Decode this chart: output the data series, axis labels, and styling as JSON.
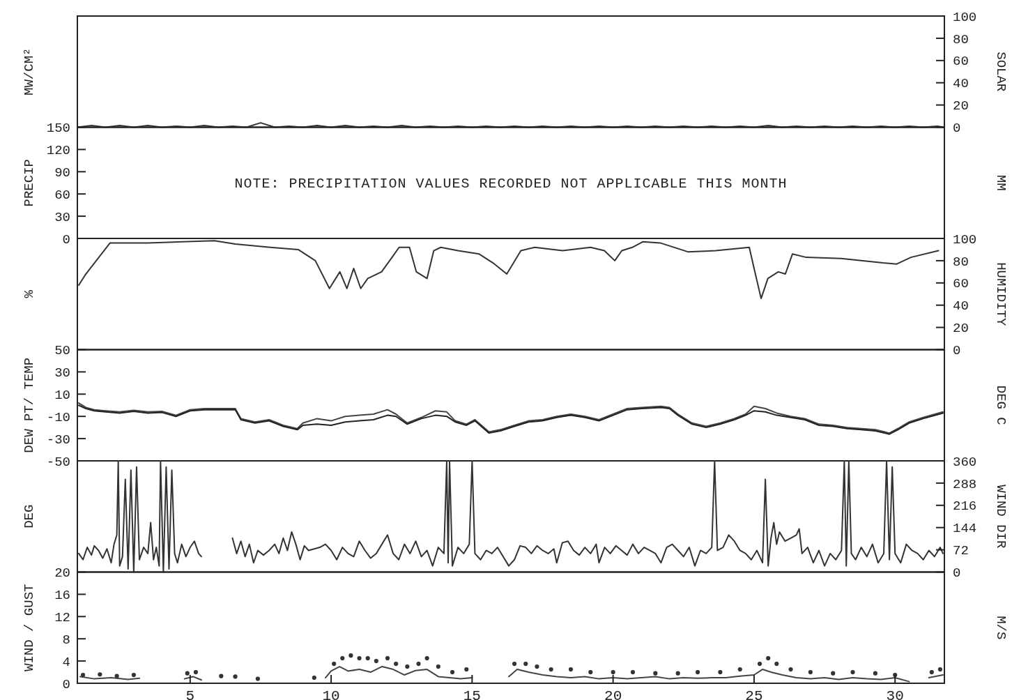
{
  "chart_data": [
    {
      "type": "line",
      "ylabel": "MW/CM²",
      "y2label": "SOLAR",
      "xlim": [
        1,
        31.75
      ],
      "y2lim": [
        0,
        100
      ],
      "y2ticks": [
        0,
        20,
        40,
        60,
        80,
        100
      ],
      "tick_labels": "y",
      "series": [
        {
          "color": "#333333",
          "axis": "y2",
          "x": [
            1,
            1.5,
            2,
            2.5,
            3,
            3.5,
            4,
            4.5,
            5,
            5.5,
            6,
            6.5,
            7,
            7.5,
            8,
            8.5,
            9,
            9.5,
            10,
            10.5,
            11,
            11.5,
            12,
            12.5,
            13,
            13.5,
            14,
            14.5,
            15,
            15.5,
            16,
            16.5,
            17,
            17.5,
            18,
            18.5,
            19,
            19.5,
            20,
            20.5,
            21,
            21.5,
            22,
            22.5,
            23,
            23.5,
            24,
            24.5,
            25,
            25.5,
            26,
            26.5,
            27,
            27.5,
            28,
            28.5,
            29,
            29.5,
            30,
            30.5,
            31,
            31.5,
            31.75
          ],
          "values": [
            0,
            1.5,
            0,
            1.5,
            0,
            1.5,
            0,
            1,
            0,
            1.5,
            0,
            1,
            0,
            4,
            0,
            1,
            0,
            1.5,
            0,
            1.5,
            0,
            1,
            0,
            1.5,
            0,
            1,
            0,
            1,
            0,
            1,
            0,
            1,
            0,
            1,
            0,
            1,
            0,
            1,
            0,
            1,
            0,
            1,
            0,
            1,
            0,
            1,
            0,
            1,
            0,
            1.5,
            0,
            1,
            0,
            1,
            0,
            1,
            0,
            1,
            0,
            1,
            0,
            1,
            0
          ]
        }
      ]
    },
    {
      "type": "line",
      "ylabel": "PRECIP",
      "y2label": "MM",
      "xlim": [
        1,
        31.75
      ],
      "ylim": [
        0,
        150
      ],
      "yticks": [
        0,
        30,
        60,
        90,
        120,
        150
      ],
      "tick_labels": "y",
      "annotations": [
        "NOTE: PRECIPITATION VALUES RECORDED NOT APPLICABLE THIS MONTH"
      ]
    },
    {
      "type": "line",
      "ylabel": "%",
      "y2label": "HUMIDITY",
      "xlim": [
        1,
        31.75
      ],
      "y2lim": [
        0,
        100
      ],
      "y2ticks": [
        0,
        20,
        40,
        60,
        80,
        100
      ],
      "tick_labels": "y",
      "series": [
        {
          "color": "#333333",
          "axis": "y2",
          "x": [
            1.05,
            1.3,
            1.67,
            2.16,
            3.5,
            5.86,
            6.6,
            7.84,
            8.83,
            9.44,
            9.94,
            10.31,
            10.56,
            10.8,
            11.05,
            11.3,
            11.79,
            12.16,
            12.41,
            12.78,
            13.02,
            13.4,
            13.64,
            13.89,
            14.5,
            15.25,
            15.74,
            16.23,
            16.73,
            17.22,
            18.21,
            19.2,
            19.69,
            20.06,
            20.31,
            20.68,
            21.05,
            21.67,
            22.65,
            23.64,
            24.83,
            25.0,
            25.25,
            25.49,
            25.86,
            26.11,
            26.36,
            26.85,
            28.09,
            29.57,
            30.06,
            30.56,
            31.54
          ],
          "values": [
            58,
            68,
            80,
            96,
            96,
            98,
            95,
            92,
            90,
            80,
            55,
            70,
            55,
            73,
            55,
            64,
            70,
            83,
            92,
            92,
            70,
            64,
            89,
            92,
            89,
            86,
            78,
            68,
            89,
            92,
            89,
            92,
            89,
            80,
            89,
            92,
            97,
            96,
            88,
            89,
            92,
            73,
            46,
            64,
            70,
            68,
            86,
            83,
            82,
            78,
            77,
            83,
            89
          ]
        }
      ]
    },
    {
      "type": "line",
      "ylabel": "DEW PT/ TEMP",
      "y2label": "DEG C",
      "xlim": [
        1,
        31.75
      ],
      "ylim": [
        -50,
        50
      ],
      "yticks": [
        -50,
        -30,
        -10,
        10,
        30,
        50
      ],
      "tick_labels": "y",
      "series": [
        {
          "color": "#444444",
          "x": [
            1.05,
            1.3,
            1.6,
            2.0,
            2.5,
            3.0,
            3.5,
            4.0,
            4.5,
            5.0,
            5.5,
            6.0,
            6.6,
            6.8,
            7.3,
            7.8,
            8.3,
            8.8,
            9.0,
            9.5,
            10.0,
            10.5,
            11.0,
            11.5,
            12.0,
            12.3,
            12.7,
            13.2,
            13.7,
            14.1,
            14.4,
            14.8,
            15.1,
            15.6,
            16.0,
            16.5,
            17.0,
            17.5,
            18.0,
            18.5,
            19.0,
            19.5,
            20.0,
            20.5,
            21.0,
            21.7,
            22.0,
            22.3,
            22.8,
            23.3,
            23.8,
            24.3,
            24.7,
            25.0,
            25.4,
            25.8,
            26.3,
            26.8,
            27.3,
            27.8,
            28.3,
            28.8,
            29.3,
            29.8,
            30.1,
            30.5,
            31.0,
            31.7
          ],
          "values": [
            2,
            -2,
            -4,
            -5,
            -6,
            -4.5,
            -6,
            -5.5,
            -9,
            -4,
            -3,
            -3,
            -3,
            -12,
            -15,
            -13,
            -18,
            -21,
            -16,
            -12,
            -14,
            -10,
            -9,
            -8,
            -4,
            -8,
            -16,
            -11,
            -5,
            -6,
            -14,
            -17,
            -13,
            -24,
            -22,
            -18,
            -14,
            -13,
            -10,
            -8,
            -10,
            -13,
            -8,
            -3,
            -2,
            -1,
            -2,
            -8,
            -16,
            -19,
            -16,
            -12,
            -8,
            -1,
            -3,
            -7,
            -10,
            -12,
            -17,
            -18,
            -20,
            -21,
            -22,
            -25,
            -21,
            -15,
            -11,
            -6
          ]
        },
        {
          "color": "#222222",
          "x": [
            1.05,
            1.3,
            1.6,
            2.0,
            2.5,
            3.0,
            3.5,
            4.0,
            4.5,
            5.0,
            5.5,
            6.0,
            6.6,
            6.8,
            7.3,
            7.8,
            8.3,
            8.8,
            9.0,
            9.5,
            10.0,
            10.5,
            11.0,
            11.5,
            12.0,
            12.3,
            12.7,
            13.2,
            13.7,
            14.1,
            14.4,
            14.8,
            15.1,
            15.6,
            16.0,
            16.5,
            17.0,
            17.5,
            18.0,
            18.5,
            19.0,
            19.5,
            20.0,
            20.5,
            21.0,
            21.7,
            22.0,
            22.3,
            22.8,
            23.3,
            23.8,
            24.3,
            24.7,
            25.0,
            25.4,
            25.8,
            26.3,
            26.8,
            27.3,
            27.8,
            28.3,
            28.8,
            29.3,
            29.8,
            30.1,
            30.5,
            31.0,
            31.7
          ],
          "values": [
            0,
            -3,
            -5,
            -6,
            -7,
            -5.5,
            -7,
            -6.5,
            -10,
            -5,
            -4,
            -4,
            -4,
            -13,
            -16,
            -14,
            -19,
            -22,
            -18,
            -17,
            -18,
            -15,
            -14,
            -13,
            -9,
            -10,
            -17,
            -12,
            -9,
            -10,
            -15,
            -18,
            -14,
            -25,
            -23,
            -19,
            -15,
            -14,
            -11,
            -9,
            -11,
            -14,
            -9,
            -4,
            -3,
            -2,
            -3,
            -9,
            -17,
            -20,
            -17,
            -13,
            -9,
            -5,
            -6,
            -9,
            -11,
            -13,
            -18,
            -19,
            -21,
            -22,
            -23,
            -26,
            -22,
            -16,
            -12,
            -7
          ]
        }
      ]
    },
    {
      "type": "line",
      "ylabel": "DEG",
      "y2label": "WIND DIR",
      "xlim": [
        1,
        31.75
      ],
      "y2lim": [
        0,
        360
      ],
      "y2ticks": [
        0,
        72,
        144,
        216,
        288,
        360
      ],
      "tick_labels": "y",
      "series": [
        {
          "color": "#333333",
          "axis": "y2",
          "x": [
            1.05,
            1.2,
            1.35,
            1.5,
            1.6,
            1.75,
            1.9,
            2.05,
            2.2,
            2.3,
            2.4,
            2.45,
            2.5,
            2.6,
            2.7,
            2.8,
            2.9,
            3.0,
            3.1,
            3.2,
            3.35,
            3.5,
            3.6,
            3.7,
            3.8,
            3.9,
            3.95,
            4.05,
            4.15,
            4.25,
            4.35,
            4.45,
            4.55,
            4.7,
            4.85,
            5.0,
            5.15,
            5.3,
            5.4,
            5.9,
            6.5,
            6.65,
            6.8,
            6.95,
            7.1,
            7.25,
            7.4,
            7.6,
            7.8,
            8.0,
            8.15,
            8.3,
            8.45,
            8.6,
            8.75,
            8.9,
            9.05,
            9.2,
            9.4,
            9.6,
            9.8,
            10.0,
            10.2,
            10.4,
            10.6,
            10.8,
            11.0,
            11.2,
            11.4,
            11.6,
            11.8,
            12.0,
            12.2,
            12.4,
            12.6,
            12.8,
            13.0,
            13.2,
            13.4,
            13.6,
            13.8,
            14.0,
            14.1,
            14.15,
            14.2,
            14.3,
            14.5,
            14.7,
            14.9,
            15.0,
            15.1,
            15.3,
            15.5,
            15.7,
            15.9,
            16.1,
            16.3,
            16.5,
            16.7,
            16.9,
            17.1,
            17.3,
            17.5,
            17.7,
            17.9,
            18.0,
            18.2,
            18.4,
            18.6,
            18.8,
            19.0,
            19.2,
            19.4,
            19.5,
            19.7,
            19.9,
            20.1,
            20.3,
            20.5,
            20.7,
            20.9,
            21.1,
            21.3,
            21.5,
            21.7,
            21.9,
            22.1,
            22.3,
            22.5,
            22.7,
            22.9,
            23.1,
            23.3,
            23.5,
            23.6,
            23.7,
            23.9,
            24.1,
            24.3,
            24.5,
            24.7,
            24.9,
            25.1,
            25.3,
            25.4,
            25.5,
            25.6,
            25.7,
            25.8,
            25.9,
            26.1,
            26.3,
            26.5,
            26.6,
            26.7,
            26.9,
            27.1,
            27.3,
            27.5,
            27.7,
            27.9,
            28.1,
            28.2,
            28.27,
            28.36,
            28.45,
            28.6,
            28.8,
            29.0,
            29.2,
            29.4,
            29.6,
            29.7,
            29.8,
            29.9,
            30.0,
            30.2,
            30.4,
            30.6,
            30.8,
            31.0,
            31.2,
            31.4,
            31.6,
            31.7
          ],
          "values": [
            60,
            40,
            80,
            55,
            85,
            70,
            45,
            75,
            30,
            90,
            120,
            360,
            20,
            50,
            300,
            10,
            330,
            0,
            340,
            40,
            80,
            60,
            160,
            40,
            80,
            20,
            360,
            0,
            340,
            10,
            330,
            60,
            30,
            90,
            50,
            80,
            100,
            60,
            50,
            null,
            110,
            60,
            100,
            50,
            90,
            30,
            70,
            55,
            70,
            90,
            60,
            110,
            70,
            130,
            90,
            40,
            85,
            70,
            75,
            80,
            90,
            70,
            40,
            80,
            60,
            50,
            100,
            70,
            45,
            60,
            90,
            120,
            60,
            40,
            90,
            60,
            100,
            50,
            70,
            20,
            80,
            60,
            360,
            30,
            360,
            20,
            80,
            60,
            90,
            360,
            60,
            40,
            70,
            60,
            80,
            50,
            20,
            40,
            85,
            80,
            60,
            85,
            70,
            60,
            75,
            30,
            95,
            100,
            70,
            55,
            80,
            60,
            90,
            30,
            80,
            60,
            85,
            70,
            55,
            90,
            60,
            80,
            70,
            60,
            30,
            80,
            90,
            70,
            50,
            80,
            20,
            70,
            60,
            80,
            360,
            70,
            80,
            120,
            100,
            70,
            60,
            40,
            70,
            30,
            300,
            20,
            110,
            160,
            90,
            130,
            100,
            110,
            120,
            140,
            60,
            80,
            30,
            70,
            20,
            60,
            40,
            70,
            360,
            20,
            360,
            60,
            40,
            80,
            50,
            90,
            30,
            60,
            360,
            40,
            340,
            60,
            30,
            90,
            70,
            60,
            40,
            70,
            50,
            80,
            60
          ]
        }
      ]
    },
    {
      "type": "line",
      "ylabel": "WIND / GUST",
      "y2label": "M/S",
      "xlim": [
        1,
        31.75
      ],
      "xticks": [
        5,
        10,
        15,
        20,
        25,
        30
      ],
      "ylim": [
        0,
        20
      ],
      "yticks": [
        0,
        4,
        8,
        12,
        16,
        20
      ],
      "series": [
        {
          "color": "#444444",
          "x": [
            1.1,
            1.6,
            2.2,
            2.8,
            3.2,
            3.5,
            4.8,
            5.1,
            5.4,
            5.6,
            9.8,
            10.0,
            10.3,
            10.6,
            11.0,
            11.4,
            11.8,
            12.2,
            12.6,
            13.0,
            13.4,
            13.8,
            14.2,
            14.6,
            15.0,
            15.5,
            16.3,
            16.6,
            17.0,
            17.5,
            18.0,
            18.5,
            19.0,
            19.5,
            20.0,
            20.5,
            21.0,
            21.5,
            22.0,
            22.5,
            23.0,
            23.5,
            24.0,
            24.5,
            25.0,
            25.3,
            25.6,
            26.0,
            26.5,
            27.0,
            27.5,
            28.0,
            28.5,
            29.0,
            29.5,
            30.0,
            30.5,
            30.8,
            31.2,
            31.7
          ],
          "values": [
            1.2,
            0.8,
            1,
            0.7,
            0.9,
            null,
            0.8,
            1.2,
            0.6,
            null,
            1,
            2.2,
            3,
            2.2,
            2.5,
            2,
            3,
            2.5,
            1.5,
            2.3,
            2.5,
            1.2,
            1,
            0.8,
            1,
            null,
            1.2,
            2.5,
            2,
            1.5,
            1.2,
            1,
            1.2,
            0.8,
            1,
            0.8,
            1,
            1.2,
            0.8,
            1,
            0.9,
            1,
            1,
            1.3,
            1.5,
            2.5,
            2,
            1.5,
            1,
            0.8,
            1,
            0.7,
            1,
            0.8,
            0.7,
            1,
            0.3,
            null,
            1,
            1.5
          ]
        },
        {
          "type": "scatter",
          "marker": "circle",
          "color": "#333333",
          "x": [
            1.2,
            1.8,
            2.4,
            3,
            4.9,
            5.2,
            6.1,
            6.6,
            7.4,
            9.4,
            10.1,
            10.4,
            10.7,
            11,
            11.3,
            11.6,
            12,
            12.3,
            12.7,
            13.1,
            13.4,
            13.8,
            14.3,
            14.8,
            16.5,
            16.9,
            17.3,
            17.8,
            18.5,
            19.2,
            20,
            20.7,
            21.5,
            22.3,
            23,
            23.8,
            24.5,
            25.2,
            25.5,
            25.8,
            26.3,
            27,
            27.8,
            28.5,
            29.3,
            30,
            31.3,
            31.6
          ],
          "values": [
            1.5,
            1.6,
            1.3,
            1.5,
            1.8,
            2,
            1.3,
            1.2,
            0.8,
            1,
            3.5,
            4.5,
            5,
            4.5,
            4.5,
            4,
            4.5,
            3.5,
            3,
            3.5,
            4.5,
            3,
            2,
            2.5,
            3.5,
            3.5,
            3,
            2.5,
            2.5,
            2,
            2,
            2,
            1.8,
            1.8,
            2,
            2,
            2.5,
            3.5,
            4.5,
            3.5,
            2.5,
            2,
            1.8,
            2,
            1.8,
            1.5,
            2,
            2.5
          ]
        }
      ]
    }
  ]
}
